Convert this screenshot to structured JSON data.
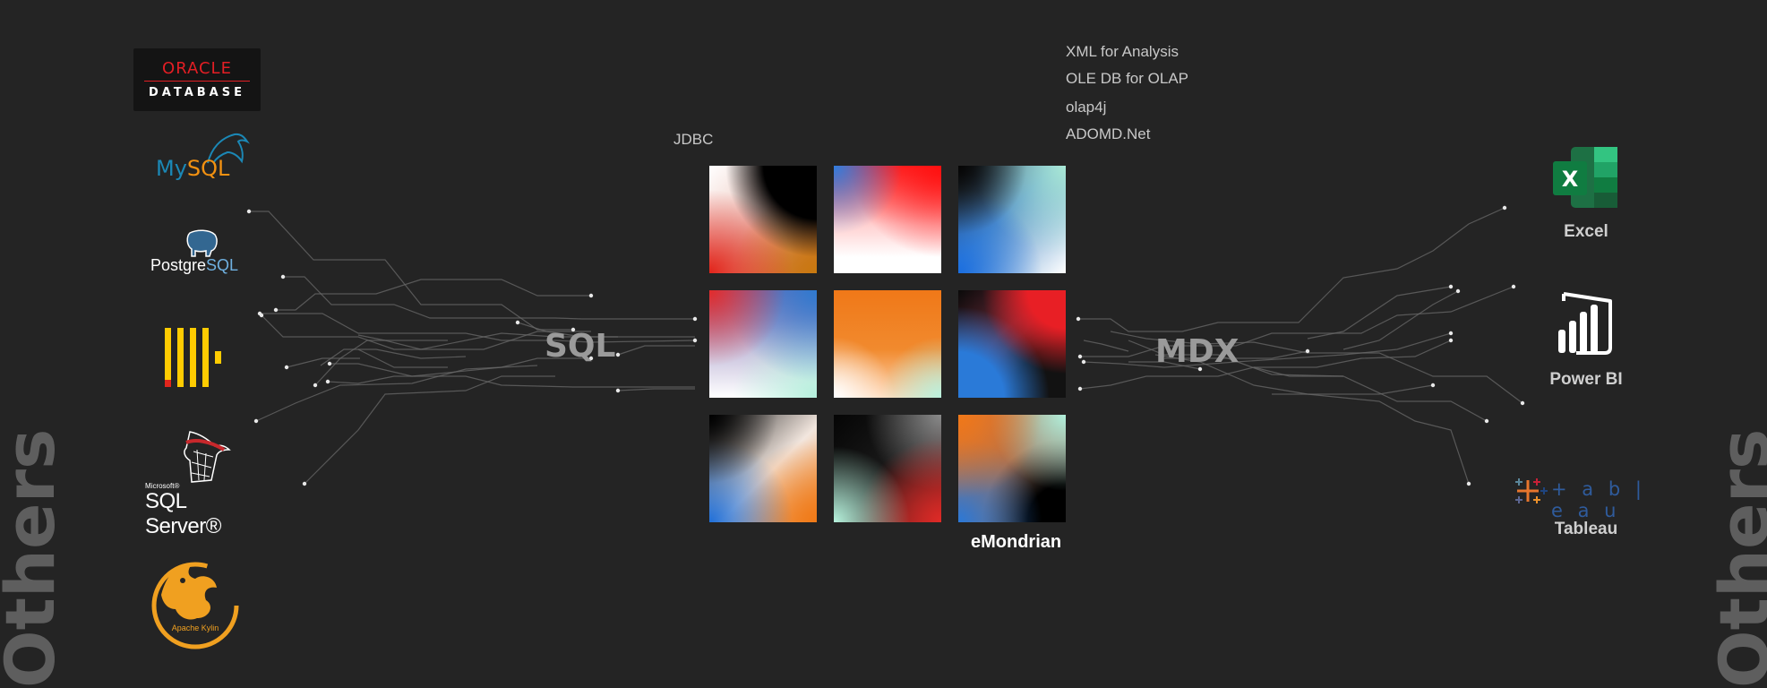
{
  "side_labels": {
    "left": "Others",
    "right": "Others"
  },
  "sources_label": "SQL",
  "clients_label": "MDX",
  "protocols": {
    "jdbc": "JDBC",
    "xmla": "XML for Analysis",
    "oledb": "OLE DB for OLAP",
    "olap4j": "olap4j",
    "adomd": "ADOMD.Net"
  },
  "product_name": "eMondrian",
  "data_sources": {
    "oracle": {
      "word": "ORACLE",
      "sub": "DATABASE",
      "brand_color": "#e31e24"
    },
    "mysql": {
      "my": "My",
      "sql": "SQL",
      "my_color": "#1b88b6",
      "sql_color": "#f29111"
    },
    "postgresql": {
      "postgre": "Postgre",
      "sql": "SQL"
    },
    "clickhouse": {
      "icon": "clickhouse-icon",
      "color": "#ffcc01"
    },
    "sqlserver": {
      "ms": "Microsoft®",
      "name": "SQL Server®"
    },
    "kylin": {
      "text": "Apache Kylin",
      "color": "#f0a020"
    }
  },
  "clients": {
    "excel": {
      "label": "Excel",
      "icon": "excel-icon",
      "color": "#1d7044"
    },
    "powerbi": {
      "label": "Power BI",
      "icon": "powerbi-icon"
    },
    "tableau": {
      "label": "Tableau",
      "word": "+ a b | e a u",
      "icon": "tableau-icon"
    }
  },
  "colors": {
    "background": "#242424",
    "red": "#e32b2b",
    "blue": "#2a7ad8",
    "orange": "#f07818",
    "mint": "#b5f0dc"
  }
}
